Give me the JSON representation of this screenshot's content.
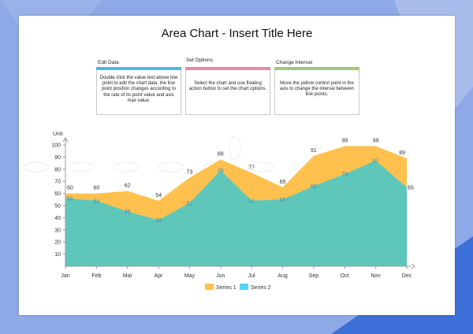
{
  "colors": {
    "series1": "#ffc04d",
    "series2": "#52d3fa",
    "overlap": "#5fc7b9",
    "card1": "#4fb6e6",
    "card2": "#e88aa8",
    "card3": "#a8c47a"
  },
  "cards": [
    {
      "heading": "Edit Data",
      "text": "Double click the value text above line point to edit the chart data, the line point position changes according to the rate of its point value and axis max value."
    },
    {
      "heading": "Set Options",
      "text": "Select the chart and use floating action button to set the chart options."
    },
    {
      "heading": "Change Interval",
      "text": "Move the yellow control point in the axis to change the interval between line points."
    }
  ],
  "chart_data": {
    "type": "area",
    "title": "Area Chart - Insert Title Here",
    "ylabel": "Unit",
    "xlabel": "",
    "ylim": [
      0,
      100
    ],
    "yticks": [
      10,
      20,
      30,
      40,
      50,
      60,
      70,
      80,
      90,
      100
    ],
    "categories": [
      "Jan",
      "Feb",
      "Mar",
      "Apr",
      "May",
      "Jun",
      "Jul",
      "Aug",
      "Sep",
      "Oct",
      "Nov",
      "Dec"
    ],
    "series": [
      {
        "name": "Series 1",
        "values": [
          60,
          60,
          62,
          54,
          73,
          88,
          77,
          65,
          91,
          99,
          99,
          89
        ]
      },
      {
        "name": "Series 2",
        "values": [
          56,
          54,
          45,
          38,
          52,
          79,
          54,
          55,
          66,
          76,
          87,
          65
        ]
      }
    ],
    "legend": "bottom-center"
  }
}
